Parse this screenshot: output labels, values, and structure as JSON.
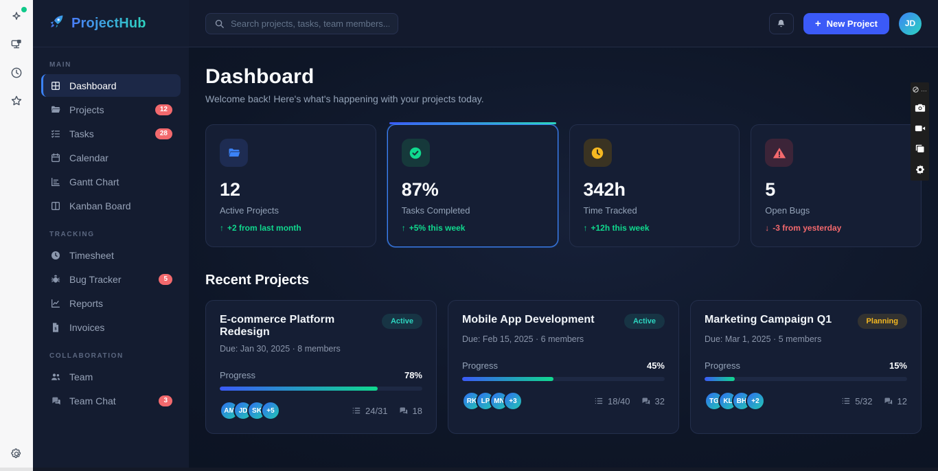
{
  "colors": {
    "accent_blue": "#3b82f6",
    "accent_teal": "#2dd4bf",
    "positive_green": "#10d98e",
    "negative_red": "#f4696d",
    "warning_amber": "#f5b821",
    "badge_red": "#f2696d",
    "sidebar_bg": "#141c30",
    "card_bg": "#151e34"
  },
  "extension_rail": {
    "icons": [
      "sparkles",
      "screen-device",
      "clock",
      "star"
    ],
    "sparkles_has_green_dot": true,
    "bottom_icon": "settings"
  },
  "sidebar": {
    "logo": "ProjectHub",
    "sections": [
      {
        "label": "MAIN",
        "items": [
          {
            "label": "Dashboard",
            "icon": "dashboard-grid",
            "active": true
          },
          {
            "label": "Projects",
            "icon": "folder",
            "badge": "12"
          },
          {
            "label": "Tasks",
            "icon": "task-list",
            "badge": "28"
          },
          {
            "label": "Calendar",
            "icon": "calendar"
          },
          {
            "label": "Gantt Chart",
            "icon": "gantt"
          },
          {
            "label": "Kanban Board",
            "icon": "kanban"
          }
        ]
      },
      {
        "label": "TRACKING",
        "items": [
          {
            "label": "Timesheet",
            "icon": "clock-filled"
          },
          {
            "label": "Bug Tracker",
            "icon": "bug",
            "badge": "5"
          },
          {
            "label": "Reports",
            "icon": "chart-line"
          },
          {
            "label": "Invoices",
            "icon": "invoice"
          }
        ]
      },
      {
        "label": "COLLABORATION",
        "items": [
          {
            "label": "Team",
            "icon": "users"
          },
          {
            "label": "Team Chat",
            "icon": "chat-bubbles",
            "badge": "3"
          }
        ]
      }
    ]
  },
  "topbar": {
    "search_placeholder": "Search projects, tasks, team members...",
    "new_project": {
      "plus": "+",
      "label": "New Project"
    },
    "avatar_initials": "JD"
  },
  "page": {
    "title": "Dashboard",
    "subtitle": "Welcome back! Here's what's happening with your projects today."
  },
  "stats": [
    {
      "value": "12",
      "label": "Active Projects",
      "arrow": "↑",
      "trend": "+2 from last month",
      "direction": "up",
      "icon": "folder",
      "highlighted": false
    },
    {
      "value": "87%",
      "label": "Tasks Completed",
      "arrow": "↑",
      "trend": "+5% this week",
      "direction": "up",
      "icon": "check-circle",
      "highlighted": true
    },
    {
      "value": "342h",
      "label": "Time Tracked",
      "arrow": "↑",
      "trend": "+12h this week",
      "direction": "up",
      "icon": "clock",
      "highlighted": false
    },
    {
      "value": "5",
      "label": "Open Bugs",
      "arrow": "↓",
      "trend": "-3 from yesterday",
      "direction": "down",
      "icon": "warning-triangle",
      "highlighted": false
    }
  ],
  "recent": {
    "title": "Recent Projects",
    "projects": [
      {
        "name": "E-commerce Platform Redesign",
        "status": "Active",
        "status_type": "active",
        "due": "Due: Jan 30, 2025 · 8 members",
        "progress": 78,
        "progress_label": "78%",
        "avatars": [
          "AM",
          "JD",
          "SK",
          "+5"
        ],
        "tasks": "24/31",
        "comments": "18"
      },
      {
        "name": "Mobile App Development",
        "status": "Active",
        "status_type": "active",
        "due": "Due: Feb 15, 2025 · 6 members",
        "progress": 45,
        "progress_label": "45%",
        "avatars": [
          "RK",
          "LP",
          "MN",
          "+3"
        ],
        "tasks": "18/40",
        "comments": "32"
      },
      {
        "name": "Marketing Campaign Q1",
        "status": "Planning",
        "status_type": "planning",
        "due": "Due: Mar 1, 2025 · 5 members",
        "progress": 15,
        "progress_label": "15%",
        "avatars": [
          "TG",
          "KL",
          "BH",
          "+2"
        ],
        "tasks": "5/32",
        "comments": "12"
      }
    ]
  },
  "capture_toolbar": {
    "menu_dots": "…",
    "icons": [
      "camera",
      "video-camera",
      "copy",
      "settings"
    ]
  }
}
